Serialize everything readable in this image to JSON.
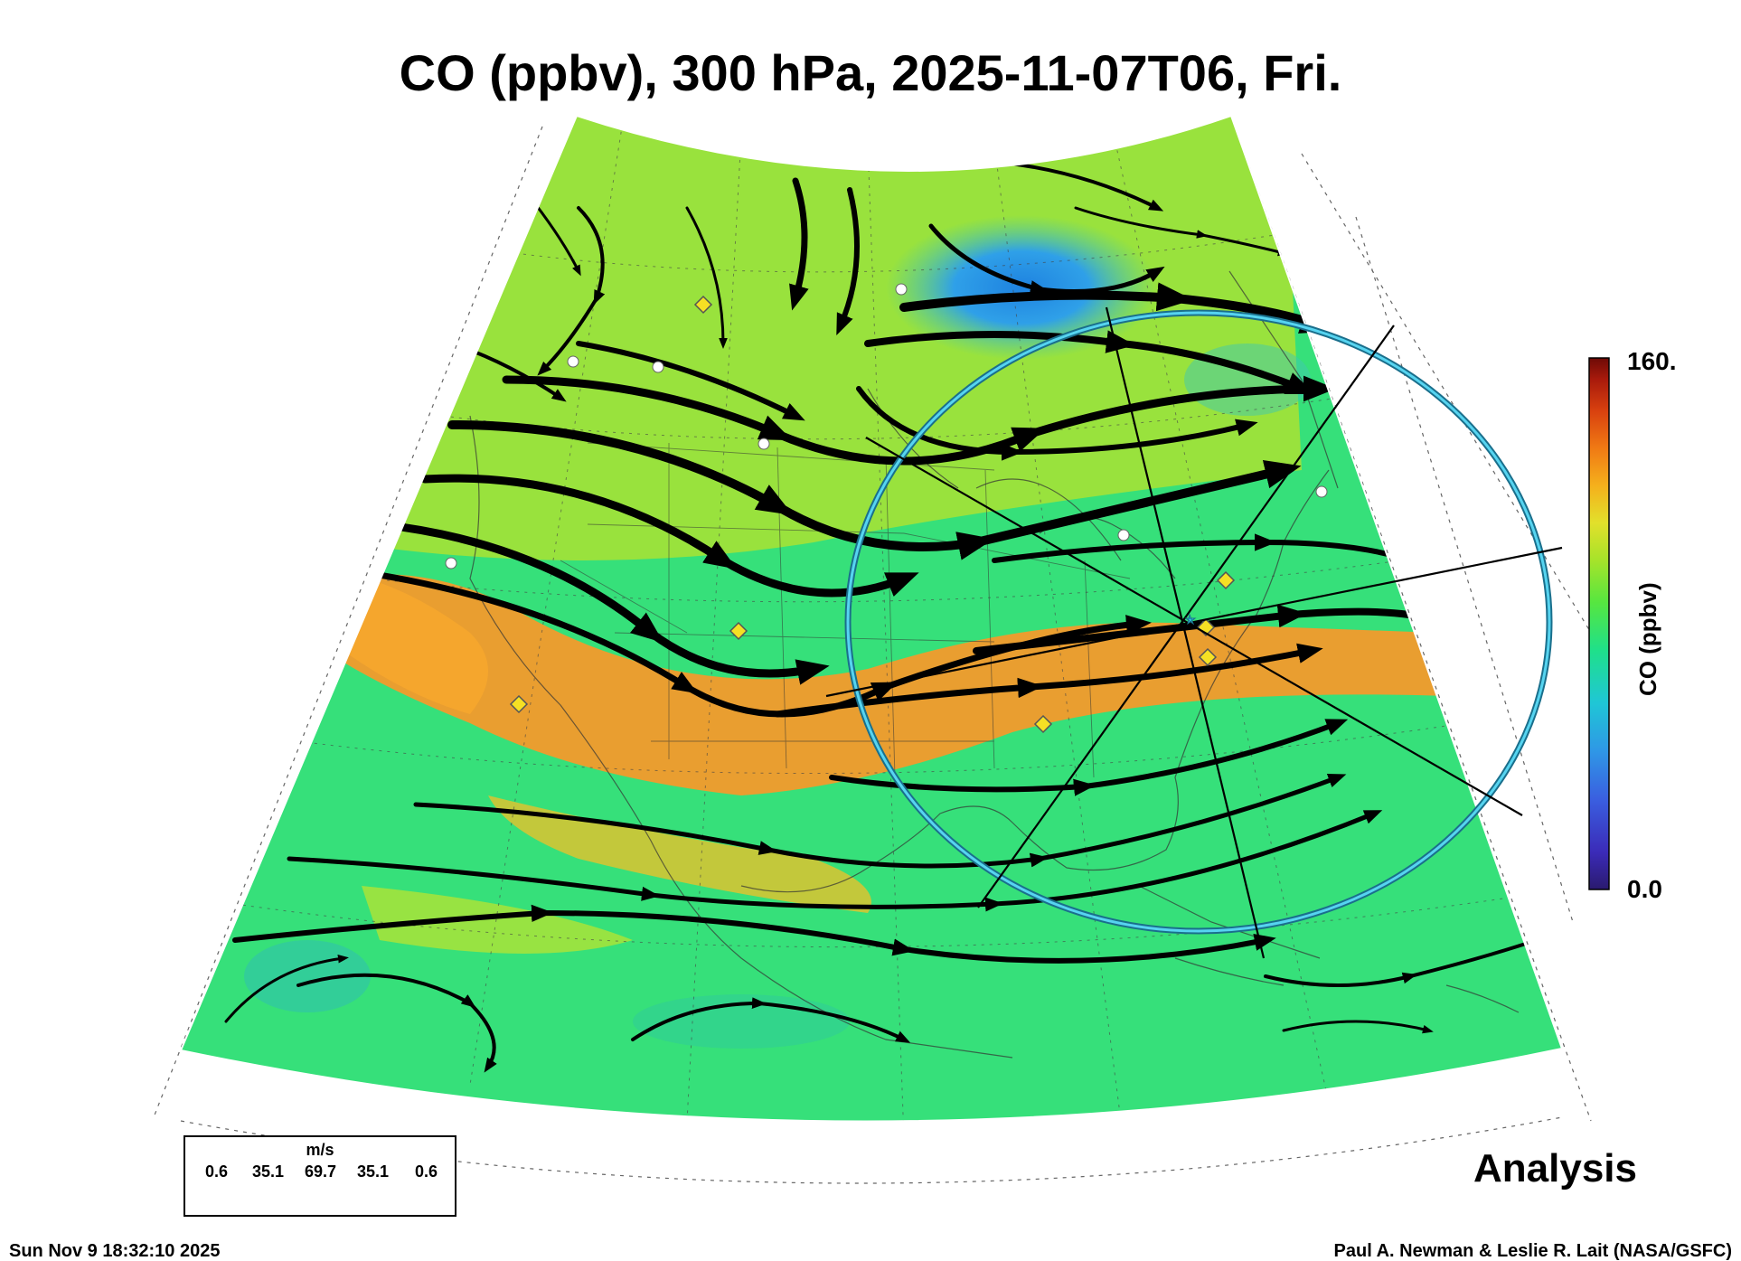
{
  "title": "CO (ppbv), 300 hPa, 2025-11-07T06, Fri.",
  "colorbar": {
    "max_label": "160.",
    "min_label": "0.0",
    "title": "CO (ppbv)",
    "colors": [
      "#2a1a6e",
      "#3b2bb8",
      "#3a5fe0",
      "#2f97e6",
      "#1fc6d6",
      "#1fe08a",
      "#56e640",
      "#a7e32a",
      "#e2e02b",
      "#f5b01c",
      "#f07a14",
      "#d9410f",
      "#a81a0c",
      "#6e0a06"
    ]
  },
  "map_colors": {
    "background_field": "#36e07a",
    "mid_band": "#9fe13a",
    "high_band": "#f39a2c",
    "low_region": "#2fa0e8",
    "streamline": "#000000",
    "circle": "#2cb8d8"
  },
  "wind_legend": {
    "unit": "m/s",
    "speeds": [
      "0.6",
      "35.1",
      "69.7",
      "35.1",
      "0.6"
    ]
  },
  "analysis_label": "Analysis",
  "footer": {
    "timestamp": "Sun Nov  9 18:32:10 2025",
    "credit": "Paul A. Newman & Leslie R. Lait (NASA/GSFC)"
  }
}
